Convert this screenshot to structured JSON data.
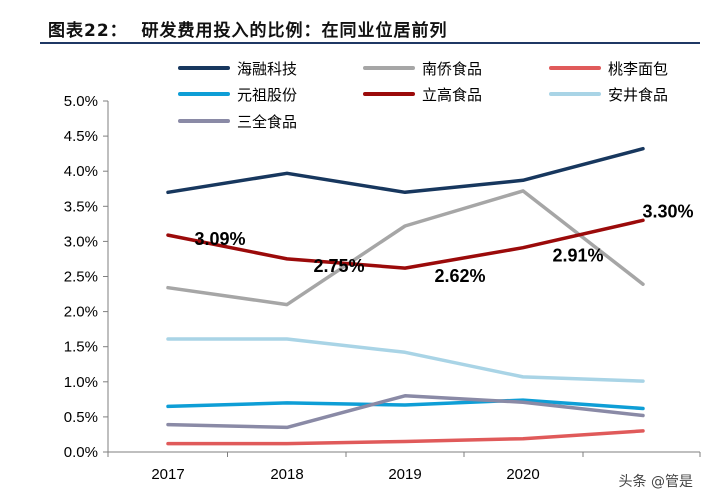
{
  "figure_title": "图表22：  研发费用投入的比例：在同业位居前列",
  "watermark": "头条 @管是",
  "colors": {
    "海融科技": "#17375e",
    "南侨食品": "#a6a6a6",
    "桃李面包": "#e05a5a",
    "元祖股份": "#0e9ed6",
    "立高食品": "#9b0a0a",
    "安井食品": "#a9d4e6",
    "三全食品": "#8a8aa6"
  },
  "chart_data": {
    "type": "line",
    "x": [
      "2017",
      "2018",
      "2019",
      "2020",
      "2021"
    ],
    "tick_labels": [
      "2017",
      "2018",
      "2019",
      "2020"
    ],
    "ylim": [
      0,
      5
    ],
    "yticks": [
      "0.0%",
      "0.5%",
      "1.0%",
      "1.5%",
      "2.0%",
      "2.5%",
      "3.0%",
      "3.5%",
      "4.0%",
      "4.5%",
      "5.0%"
    ],
    "grid": false,
    "legend_position": "top",
    "series": [
      {
        "name": "海融科技",
        "values": [
          3.7,
          3.97,
          3.7,
          3.87,
          4.32
        ]
      },
      {
        "name": "南侨食品",
        "values": [
          2.34,
          2.1,
          3.22,
          3.72,
          2.39
        ]
      },
      {
        "name": "桃李面包",
        "values": [
          0.12,
          0.12,
          0.15,
          0.19,
          0.3
        ]
      },
      {
        "name": "元祖股份",
        "values": [
          0.65,
          0.7,
          0.67,
          0.74,
          0.62
        ]
      },
      {
        "name": "立高食品",
        "values": [
          3.09,
          2.75,
          2.62,
          2.91,
          3.3
        ]
      },
      {
        "name": "安井食品",
        "values": [
          1.61,
          1.61,
          1.42,
          1.07,
          1.01
        ]
      },
      {
        "name": "三全食品",
        "values": [
          0.39,
          0.35,
          0.8,
          0.71,
          0.52
        ]
      }
    ],
    "data_labels": [
      "3.09%",
      "2.75%",
      "2.62%",
      "2.91%",
      "3.30%"
    ]
  }
}
